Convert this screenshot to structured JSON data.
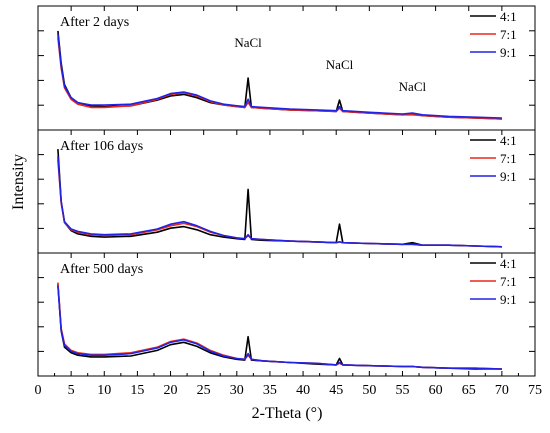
{
  "chart_data": {
    "type": "line",
    "xlabel": "2-Theta (°)",
    "ylabel": "Intensity",
    "xlim": [
      0,
      75
    ],
    "x_ticks": [
      0,
      5,
      10,
      15,
      20,
      25,
      30,
      35,
      40,
      45,
      50,
      55,
      60,
      65,
      70,
      75
    ],
    "y_scale": "relative (no tick labels)",
    "legend_position": "top-right of each panel",
    "series_colors": {
      "4:1": "#000000",
      "7:1": "#e8281c",
      "9:1": "#2222e6"
    },
    "panels": [
      {
        "title": "After 2 days",
        "annotations": [
          {
            "text": "NaCl",
            "x": 31.7
          },
          {
            "text": "NaCl",
            "x": 45.5
          },
          {
            "text": "NaCl",
            "x": 56.5
          }
        ],
        "series": [
          {
            "name": "4:1",
            "x": [
              3,
              3.5,
              4,
              5,
              6,
              8,
              10,
              14,
              18,
              20,
              22,
              24,
              26,
              28,
              30,
              31.2,
              31.7,
              32.2,
              34,
              38,
              42,
              45,
              45.5,
              46,
              50,
              55,
              56.5,
              58,
              62,
              66,
              70
            ],
            "values": [
              118,
              78,
              52,
              36,
              30,
              26,
              25,
              26,
              33,
              38,
              40,
              36,
              30,
              27,
              25,
              24,
              60,
              24,
              23,
              21,
              20,
              19,
              33,
              19,
              17,
              15,
              16,
              14,
              12,
              11,
              10
            ]
          },
          {
            "name": "7:1",
            "x": [
              3,
              3.5,
              4,
              5,
              6,
              8,
              10,
              14,
              18,
              20,
              22,
              24,
              26,
              28,
              30,
              31.2,
              31.7,
              32.2,
              34,
              38,
              42,
              45,
              45.5,
              46,
              50,
              55,
              56.5,
              58,
              62,
              66,
              70
            ],
            "values": [
              110,
              72,
              48,
              34,
              28,
              24,
              24,
              26,
              34,
              40,
              42,
              38,
              31,
              27,
              25,
              24,
              30,
              24,
              23,
              21,
              20,
              19,
              23,
              19,
              17,
              15,
              15,
              14,
              12,
              11,
              10
            ]
          },
          {
            "name": "9:1",
            "x": [
              3,
              3.5,
              4,
              5,
              6,
              8,
              10,
              14,
              18,
              20,
              22,
              24,
              26,
              28,
              30,
              31.2,
              31.7,
              32.2,
              34,
              38,
              42,
              45,
              45.5,
              46,
              50,
              55,
              56.5,
              58,
              62,
              66,
              70
            ],
            "values": [
              114,
              75,
              50,
              36,
              30,
              27,
              27,
              28,
              35,
              41,
              43,
              39,
              32,
              28,
              26,
              25,
              34,
              25,
              24,
              22,
              21,
              20,
              25,
              20,
              18,
              16,
              17,
              15,
              13,
              12,
              11
            ]
          }
        ]
      },
      {
        "title": "After 106 days",
        "annotations": [],
        "series": [
          {
            "name": "4:1",
            "x": [
              3,
              3.5,
              4,
              5,
              6,
              8,
              10,
              14,
              18,
              20,
              22,
              24,
              26,
              28,
              30,
              31.2,
              31.7,
              32.2,
              34,
              38,
              42,
              45,
              45.5,
              46,
              50,
              55,
              56.5,
              58,
              62,
              66,
              70
            ],
            "values": [
              125,
              60,
              34,
              24,
              20,
              17,
              16,
              17,
              22,
              27,
              29,
              25,
              19,
              16,
              14,
              13,
              75,
              13,
              12,
              11,
              10,
              9,
              32,
              9,
              8,
              7,
              9,
              6,
              6,
              5,
              4
            ]
          },
          {
            "name": "7:1",
            "x": [
              3,
              3.5,
              4,
              5,
              6,
              8,
              10,
              14,
              18,
              20,
              22,
              24,
              26,
              28,
              30,
              31.2,
              31.7,
              32.2,
              34,
              38,
              42,
              45,
              45.5,
              46,
              50,
              55,
              56.5,
              58,
              62,
              66,
              70
            ],
            "values": [
              112,
              58,
              34,
              25,
              22,
              19,
              18,
              19,
              25,
              30,
              33,
              29,
              22,
              18,
              15,
              14,
              18,
              14,
              13,
              11,
              10,
              9,
              10,
              9,
              8,
              7,
              7,
              6,
              6,
              5,
              4
            ]
          },
          {
            "name": "9:1",
            "x": [
              3,
              3.5,
              4,
              5,
              6,
              8,
              10,
              14,
              18,
              20,
              22,
              24,
              26,
              28,
              30,
              31.2,
              31.7,
              32.2,
              34,
              38,
              42,
              45,
              45.5,
              46,
              50,
              55,
              56.5,
              58,
              62,
              66,
              70
            ],
            "values": [
              116,
              60,
              35,
              26,
              23,
              20,
              19,
              20,
              26,
              32,
              35,
              30,
              23,
              18,
              15,
              14,
              19,
              14,
              13,
              11,
              10,
              9,
              10,
              9,
              8,
              7,
              7,
              6,
              6,
              5,
              4
            ]
          }
        ]
      },
      {
        "title": "After 500 days",
        "annotations": [],
        "series": [
          {
            "name": "4:1",
            "x": [
              3,
              3.5,
              4,
              5,
              6,
              8,
              10,
              14,
              18,
              20,
              22,
              24,
              26,
              28,
              30,
              31.2,
              31.7,
              32.2,
              34,
              38,
              42,
              45,
              45.5,
              46,
              50,
              55,
              56.5,
              58,
              62,
              66,
              70
            ],
            "values": [
              110,
              52,
              32,
              25,
              22,
              20,
              20,
              21,
              28,
              35,
              38,
              33,
              25,
              20,
              17,
              16,
              45,
              16,
              15,
              13,
              11,
              10,
              18,
              10,
              9,
              8,
              8,
              7,
              6,
              5,
              5
            ]
          },
          {
            "name": "7:1",
            "x": [
              3,
              3.5,
              4,
              5,
              6,
              8,
              10,
              14,
              18,
              20,
              22,
              24,
              26,
              28,
              30,
              31.2,
              31.7,
              32.2,
              34,
              38,
              42,
              45,
              45.5,
              46,
              50,
              55,
              56.5,
              58,
              62,
              66,
              70
            ],
            "values": [
              112,
              55,
              36,
              28,
              25,
              23,
              23,
              25,
              32,
              39,
              42,
              37,
              28,
              22,
              18,
              17,
              22,
              17,
              15,
              13,
              12,
              10,
              12,
              10,
              9,
              8,
              8,
              7,
              6,
              6,
              5
            ]
          },
          {
            "name": "9:1",
            "x": [
              3,
              3.5,
              4,
              5,
              6,
              8,
              10,
              14,
              18,
              20,
              22,
              24,
              26,
              28,
              30,
              31.2,
              31.7,
              32.2,
              34,
              38,
              42,
              45,
              45.5,
              46,
              50,
              55,
              56.5,
              58,
              62,
              66,
              70
            ],
            "values": [
              108,
              53,
              34,
              27,
              24,
              22,
              22,
              24,
              31,
              38,
              41,
              36,
              27,
              21,
              18,
              17,
              24,
              17,
              15,
              13,
              12,
              10,
              13,
              10,
              9,
              8,
              8,
              7,
              6,
              6,
              5
            ]
          }
        ]
      }
    ]
  }
}
